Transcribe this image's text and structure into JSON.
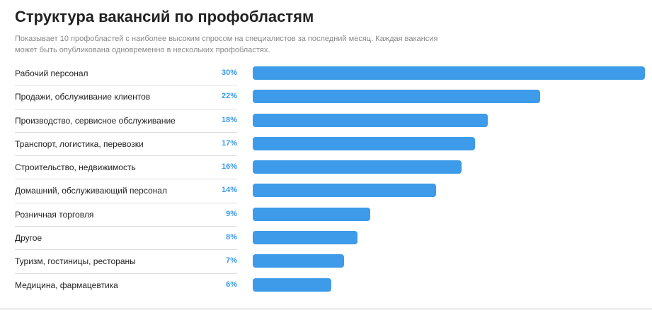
{
  "header": {
    "title": "Структура вакансий по профобластям",
    "subtitle": "Показывает 10 профобластей с наиболее высоким спросом на специалистов за последний месяц. Каждая вакансия может быть опубликована одновременно в нескольких профобластях."
  },
  "colors": {
    "bar": "#3d9be9",
    "value_text": "#3d9be9"
  },
  "chart_data": {
    "type": "bar",
    "orientation": "horizontal",
    "title": "Структура вакансий по профобластям",
    "xlim": [
      0,
      30
    ],
    "grid": false,
    "categories": [
      "Рабочий персонал",
      "Продажи, обслуживание клиентов",
      "Производство, сервисное обслуживание",
      "Транспорт, логистика, перевозки",
      "Строительство, недвижимость",
      "Домашний, обслуживающий персонал",
      "Розничная торговля",
      "Другое",
      "Туризм, гостиницы, рестораны",
      "Медицина, фармацевтика"
    ],
    "values": [
      30,
      22,
      18,
      17,
      16,
      14,
      9,
      8,
      7,
      6
    ],
    "value_labels": [
      "30%",
      "22%",
      "18%",
      "17%",
      "16%",
      "14%",
      "9%",
      "8%",
      "7%",
      "6%"
    ]
  }
}
